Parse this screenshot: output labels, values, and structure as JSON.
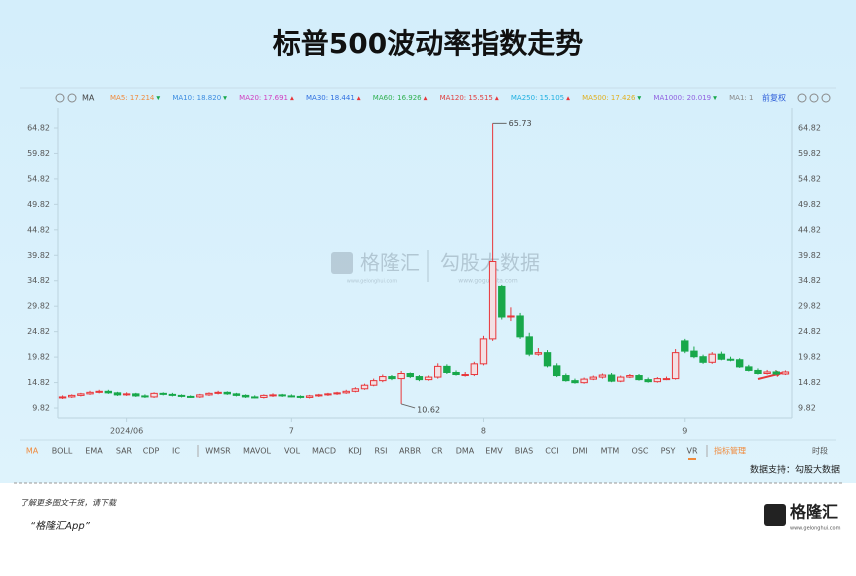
{
  "header": {
    "title": "标普500波动率指数走势"
  },
  "chart_data": {
    "type": "candlestick",
    "categories": [
      null,
      null,
      null,
      null,
      null,
      null,
      null,
      "2024/06",
      null,
      null,
      null,
      null,
      null,
      null,
      null,
      null,
      null,
      null,
      null,
      null,
      null,
      null,
      null,
      null,
      null,
      "7",
      null,
      null,
      null,
      null,
      null,
      null,
      null,
      null,
      null,
      null,
      null,
      null,
      null,
      null,
      null,
      null,
      null,
      null,
      null,
      null,
      "8",
      null,
      null,
      null,
      null,
      null,
      null,
      null,
      null,
      null,
      null,
      null,
      null,
      null,
      null,
      null,
      null,
      null,
      null,
      null,
      null,
      null,
      "9",
      null,
      null,
      null,
      null,
      null,
      null,
      null,
      null,
      null,
      null,
      null
    ],
    "open": [
      11.8,
      12.0,
      12.3,
      12.6,
      12.9,
      13.1,
      12.8,
      12.4,
      12.6,
      12.2,
      12.0,
      12.7,
      12.5,
      12.3,
      12.1,
      12.0,
      12.4,
      12.7,
      12.9,
      12.6,
      12.3,
      12.0,
      11.9,
      12.3,
      12.4,
      12.2,
      12.1,
      11.9,
      12.2,
      12.4,
      12.6,
      12.8,
      13.1,
      13.6,
      14.3,
      15.2,
      16.0,
      15.6,
      16.6,
      16.0,
      15.4,
      15.9,
      18.0,
      16.8,
      16.4,
      16.4,
      18.5,
      23.4,
      33.7,
      27.7,
      27.9,
      23.8,
      20.4,
      20.7,
      18.1,
      16.2,
      15.2,
      14.8,
      15.5,
      15.9,
      16.3,
      15.1,
      15.9,
      16.2,
      15.4,
      15.0,
      15.6,
      15.6,
      23.0,
      21.0,
      19.9,
      18.8,
      20.4,
      19.4,
      19.3,
      17.9,
      17.2,
      16.6,
      16.9,
      16.5
    ],
    "high": [
      12.3,
      12.5,
      12.8,
      13.2,
      13.4,
      13.4,
      13.0,
      12.9,
      12.8,
      12.5,
      12.9,
      12.9,
      12.8,
      12.5,
      12.3,
      12.6,
      12.9,
      13.2,
      13.1,
      12.8,
      12.5,
      12.3,
      12.5,
      12.7,
      12.6,
      12.5,
      12.3,
      12.4,
      12.6,
      12.8,
      13.0,
      13.4,
      13.9,
      14.6,
      15.6,
      16.4,
      16.3,
      17.1,
      16.8,
      16.3,
      16.2,
      18.6,
      18.4,
      17.2,
      16.9,
      18.9,
      24.0,
      65.73,
      34.0,
      29.6,
      28.5,
      24.6,
      21.6,
      21.2,
      18.6,
      16.6,
      15.6,
      15.8,
      16.2,
      16.6,
      16.7,
      16.2,
      16.5,
      16.5,
      15.8,
      15.9,
      16.0,
      21.4,
      23.4,
      21.9,
      20.3,
      20.8,
      20.9,
      19.9,
      19.6,
      18.3,
      17.6,
      17.3,
      17.2,
      17.2
    ],
    "low": [
      11.6,
      11.8,
      12.1,
      12.4,
      12.7,
      12.6,
      12.2,
      12.2,
      12.0,
      11.8,
      11.8,
      12.3,
      12.1,
      11.9,
      11.8,
      11.8,
      12.2,
      12.5,
      12.4,
      12.1,
      11.8,
      11.7,
      11.7,
      12.0,
      12.0,
      11.9,
      11.7,
      11.7,
      12.0,
      12.2,
      12.4,
      12.6,
      12.9,
      13.4,
      14.1,
      14.9,
      15.3,
      10.62,
      15.7,
      15.1,
      15.2,
      15.6,
      16.5,
      16.2,
      16.0,
      16.1,
      18.2,
      23.0,
      27.2,
      26.9,
      23.4,
      20.0,
      20.1,
      17.8,
      15.9,
      15.0,
      14.6,
      14.6,
      15.3,
      15.6,
      14.9,
      14.9,
      15.7,
      15.2,
      14.8,
      14.8,
      15.3,
      15.4,
      20.6,
      19.6,
      18.5,
      18.5,
      19.2,
      19.0,
      17.7,
      17.0,
      16.4,
      16.4,
      16.3,
      16.3
    ],
    "close": [
      12.0,
      12.3,
      12.6,
      12.9,
      13.1,
      12.8,
      12.4,
      12.6,
      12.2,
      12.0,
      12.7,
      12.5,
      12.3,
      12.1,
      12.0,
      12.4,
      12.7,
      12.9,
      12.6,
      12.3,
      12.0,
      11.9,
      12.3,
      12.4,
      12.2,
      12.1,
      11.9,
      12.2,
      12.4,
      12.6,
      12.8,
      13.1,
      13.6,
      14.3,
      15.2,
      16.0,
      15.6,
      16.6,
      16.0,
      15.4,
      15.9,
      18.0,
      16.8,
      16.4,
      16.4,
      18.5,
      23.4,
      38.6,
      27.7,
      27.9,
      23.8,
      20.4,
      20.7,
      18.1,
      16.2,
      15.2,
      14.8,
      15.5,
      15.9,
      16.3,
      15.1,
      15.9,
      16.2,
      15.4,
      15.0,
      15.6,
      15.6,
      20.7,
      21.0,
      19.9,
      18.8,
      20.4,
      19.4,
      19.3,
      17.9,
      17.2,
      16.6,
      16.9,
      16.5,
      16.9
    ],
    "up_color": "#e8363a",
    "down_color": "#18a84a",
    "ylim": [
      8.45,
      71.3
    ],
    "yticks": [
      9.82,
      14.82,
      19.82,
      24.82,
      29.82,
      34.82,
      39.82,
      44.82,
      49.82,
      54.82,
      59.82,
      64.82
    ],
    "toolbar_label": "MA",
    "adjust_label": "前复权",
    "ma_legend": [
      {
        "label": "MA5: 17.214",
        "trend": "▼",
        "color": "#f08a3c"
      },
      {
        "label": "MA10: 18.820",
        "trend": "▼",
        "color": "#3c8ce0"
      },
      {
        "label": "MA20: 17.691",
        "trend": "▲",
        "color": "#d040c0"
      },
      {
        "label": "MA30: 18.441",
        "trend": "▲",
        "color": "#3070e0"
      },
      {
        "label": "MA60: 16.926",
        "trend": "▲",
        "color": "#30b050"
      },
      {
        "label": "MA120: 15.515",
        "trend": "▲",
        "color": "#e04040"
      },
      {
        "label": "MA250: 15.105",
        "trend": "▲",
        "color": "#20b0e0"
      },
      {
        "label": "MA500: 17.426",
        "trend": "▼",
        "color": "#e0b020"
      },
      {
        "label": "MA1000: 20.019",
        "trend": "▼",
        "color": "#9060e0"
      },
      {
        "label": "MA1: 1",
        "trend": null,
        "color": "#888888"
      }
    ],
    "indicator_tabs": [
      "MA",
      "BOLL",
      "EMA",
      "SAR",
      "CDP",
      "IC",
      "WMSR",
      "MAVOL",
      "VOL",
      "MACD",
      "KDJ",
      "RSI",
      "ARBR",
      "CR",
      "DMA",
      "EMV",
      "BIAS",
      "CCI",
      "DMI",
      "MTM",
      "OSC",
      "PSY",
      "VR",
      "指标管理"
    ],
    "period_label": "时段"
  },
  "watermark": {
    "brand": "格隆汇",
    "brand_url": "www.gelonghui.com",
    "data_brand": "勾股大数据",
    "data_url": "www.gogudata.com"
  },
  "source": "数据支持：勾股大数据",
  "footer": {
    "line1": "了解更多图文干货，请下载",
    "line2": "“格隆汇App”",
    "logo": "格隆汇",
    "logo_url": "www.gelonghui.com"
  }
}
